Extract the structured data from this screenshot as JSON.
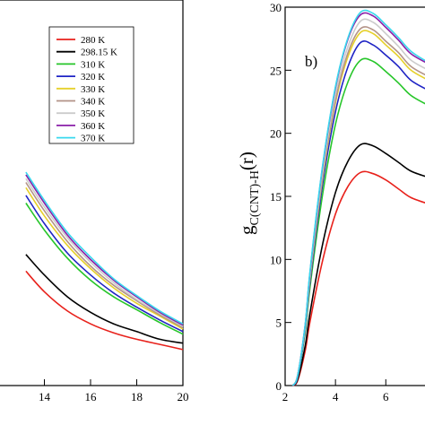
{
  "chart_data": [
    {
      "type": "line",
      "panel": "left",
      "title": "",
      "xlabel": "",
      "ylabel": "",
      "xlim": [
        12,
        20
      ],
      "ylim": [
        0,
        30
      ],
      "x_ticks": [
        "14",
        "16",
        "18",
        "20"
      ],
      "legend": {
        "placement": "top-right",
        "entries": [
          "280 K",
          "298.15 K",
          "310 K",
          "320 K",
          "330 K",
          "340 K",
          "350 K",
          "360 K",
          "370 K"
        ]
      },
      "series": [
        {
          "name": "280 K",
          "color": "#e8211b",
          "x": [
            13.2,
            14,
            15,
            16,
            17,
            18,
            19,
            20
          ],
          "values": [
            8.9,
            7.3,
            5.8,
            4.8,
            4.1,
            3.6,
            3.2,
            2.8
          ]
        },
        {
          "name": "298.15 K",
          "color": "#000000",
          "x": [
            13.2,
            14,
            15,
            16,
            17,
            18,
            19,
            20
          ],
          "values": [
            10.2,
            8.6,
            6.9,
            5.7,
            4.8,
            4.2,
            3.6,
            3.3
          ]
        },
        {
          "name": "310 K",
          "color": "#27c62a",
          "x": [
            13.2,
            14,
            15,
            16,
            17,
            18,
            19,
            20
          ],
          "values": [
            14.2,
            12.1,
            9.9,
            8.2,
            6.9,
            5.9,
            4.9,
            4.0
          ]
        },
        {
          "name": "320 K",
          "color": "#1f24c5",
          "x": [
            13.2,
            14,
            15,
            16,
            17,
            18,
            19,
            20
          ],
          "values": [
            14.8,
            12.6,
            10.3,
            8.6,
            7.2,
            6.1,
            5.1,
            4.2
          ]
        },
        {
          "name": "330 K",
          "color": "#e6d02b",
          "x": [
            13.2,
            14,
            15,
            16,
            17,
            18,
            19,
            20
          ],
          "values": [
            15.4,
            13.2,
            10.9,
            9.1,
            7.6,
            6.4,
            5.4,
            4.4
          ]
        },
        {
          "name": "340 K",
          "color": "#b39387",
          "x": [
            13.2,
            14,
            15,
            16,
            17,
            18,
            19,
            20
          ],
          "values": [
            15.8,
            13.6,
            11.2,
            9.3,
            7.8,
            6.6,
            5.5,
            4.5
          ]
        },
        {
          "name": "350 K",
          "color": "#cccccc",
          "x": [
            13.2,
            14,
            15,
            16,
            17,
            18,
            19,
            20
          ],
          "values": [
            16.1,
            13.9,
            11.5,
            9.6,
            8.0,
            6.7,
            5.6,
            4.6
          ]
        },
        {
          "name": "360 K",
          "color": "#8a1fa8",
          "x": [
            13.2,
            14,
            15,
            16,
            17,
            18,
            19,
            20
          ],
          "values": [
            16.4,
            14.2,
            11.7,
            9.8,
            8.2,
            6.9,
            5.7,
            4.7
          ]
        },
        {
          "name": "370 K",
          "color": "#39d8ee",
          "x": [
            13.2,
            14,
            15,
            16,
            17,
            18,
            19,
            20
          ],
          "values": [
            16.6,
            14.4,
            11.9,
            10.0,
            8.3,
            7.0,
            5.8,
            4.8
          ]
        }
      ]
    },
    {
      "type": "line",
      "panel": "right",
      "title": "",
      "panel_label": "b)",
      "xlabel": "",
      "ylabel_main": "g",
      "ylabel_sub": "C(CNT)-H",
      "ylabel_tail": "(r)",
      "xlim": [
        2,
        7.7
      ],
      "ylim": [
        0,
        30
      ],
      "x_ticks": [
        2,
        4,
        6
      ],
      "y_ticks": [
        0,
        5,
        10,
        15,
        20,
        25,
        30
      ],
      "series": [
        {
          "name": "280 K",
          "color": "#e8211b",
          "x": [
            2.3,
            2.5,
            2.8,
            3,
            3.5,
            4,
            4.5,
            5,
            5.5,
            6,
            6.5,
            7,
            7.7
          ],
          "values": [
            0,
            0.4,
            2.8,
            5.2,
            10,
            13.6,
            15.8,
            16.9,
            16.8,
            16.3,
            15.6,
            14.9,
            14.4
          ]
        },
        {
          "name": "298.15 K",
          "color": "#000000",
          "x": [
            2.3,
            2.5,
            2.8,
            3,
            3.5,
            4,
            4.5,
            5,
            5.5,
            6,
            6.5,
            7,
            7.7
          ],
          "values": [
            0,
            0.5,
            3.2,
            5.9,
            11.3,
            15.3,
            17.8,
            19.1,
            19.0,
            18.4,
            17.7,
            17.0,
            16.5
          ]
        },
        {
          "name": "310 K",
          "color": "#27c62a",
          "x": [
            2.3,
            2.5,
            2.8,
            3,
            3.5,
            4,
            4.5,
            5,
            5.5,
            6,
            6.5,
            7,
            7.7
          ],
          "values": [
            0,
            0.7,
            4.3,
            8.0,
            15.3,
            20.7,
            24.1,
            25.8,
            25.7,
            24.9,
            24.0,
            23.0,
            22.2
          ]
        },
        {
          "name": "320 K",
          "color": "#1f24c5",
          "x": [
            2.3,
            2.5,
            2.8,
            3,
            3.5,
            4,
            4.5,
            5,
            5.5,
            6,
            6.5,
            7,
            7.7
          ],
          "values": [
            0,
            0.7,
            4.5,
            8.4,
            16.1,
            21.7,
            25.3,
            27.2,
            27.0,
            26.2,
            25.3,
            24.2,
            23.4
          ]
        },
        {
          "name": "330 K",
          "color": "#e6d02b",
          "x": [
            2.3,
            2.5,
            2.8,
            3,
            3.5,
            4,
            4.5,
            5,
            5.5,
            6,
            6.5,
            7,
            7.7
          ],
          "values": [
            0,
            0.8,
            4.7,
            8.7,
            16.6,
            22.4,
            26.1,
            28.0,
            27.9,
            27.0,
            26.1,
            25.0,
            24.2
          ]
        },
        {
          "name": "340 K",
          "color": "#b39387",
          "x": [
            2.3,
            2.5,
            2.8,
            3,
            3.5,
            4,
            4.5,
            5,
            5.5,
            6,
            6.5,
            7,
            7.7
          ],
          "values": [
            0,
            0.8,
            4.7,
            8.8,
            16.8,
            22.6,
            26.4,
            28.3,
            28.2,
            27.3,
            26.4,
            25.3,
            24.5
          ]
        },
        {
          "name": "350 K",
          "color": "#cccccc",
          "x": [
            2.3,
            2.5,
            2.8,
            3,
            3.5,
            4,
            4.5,
            5,
            5.5,
            6,
            6.5,
            7,
            7.7
          ],
          "values": [
            0,
            0.8,
            4.8,
            9.0,
            17.1,
            23.1,
            26.9,
            28.9,
            28.8,
            27.9,
            26.9,
            25.8,
            25.0
          ]
        },
        {
          "name": "360 K",
          "color": "#8a1fa8",
          "x": [
            2.3,
            2.5,
            2.8,
            3,
            3.5,
            4,
            4.5,
            5,
            5.5,
            6,
            6.5,
            7,
            7.7
          ],
          "values": [
            0,
            0.8,
            4.9,
            9.2,
            17.5,
            23.6,
            27.5,
            29.4,
            29.3,
            28.4,
            27.4,
            26.3,
            25.5
          ]
        },
        {
          "name": "370 K",
          "color": "#39d8ee",
          "x": [
            2.3,
            2.5,
            2.8,
            3,
            3.5,
            4,
            4.5,
            5,
            5.5,
            6,
            6.5,
            7,
            7.7
          ],
          "values": [
            0,
            0.8,
            4.9,
            9.3,
            17.6,
            23.7,
            27.6,
            29.6,
            29.5,
            28.6,
            27.6,
            26.5,
            25.6
          ]
        }
      ]
    }
  ]
}
